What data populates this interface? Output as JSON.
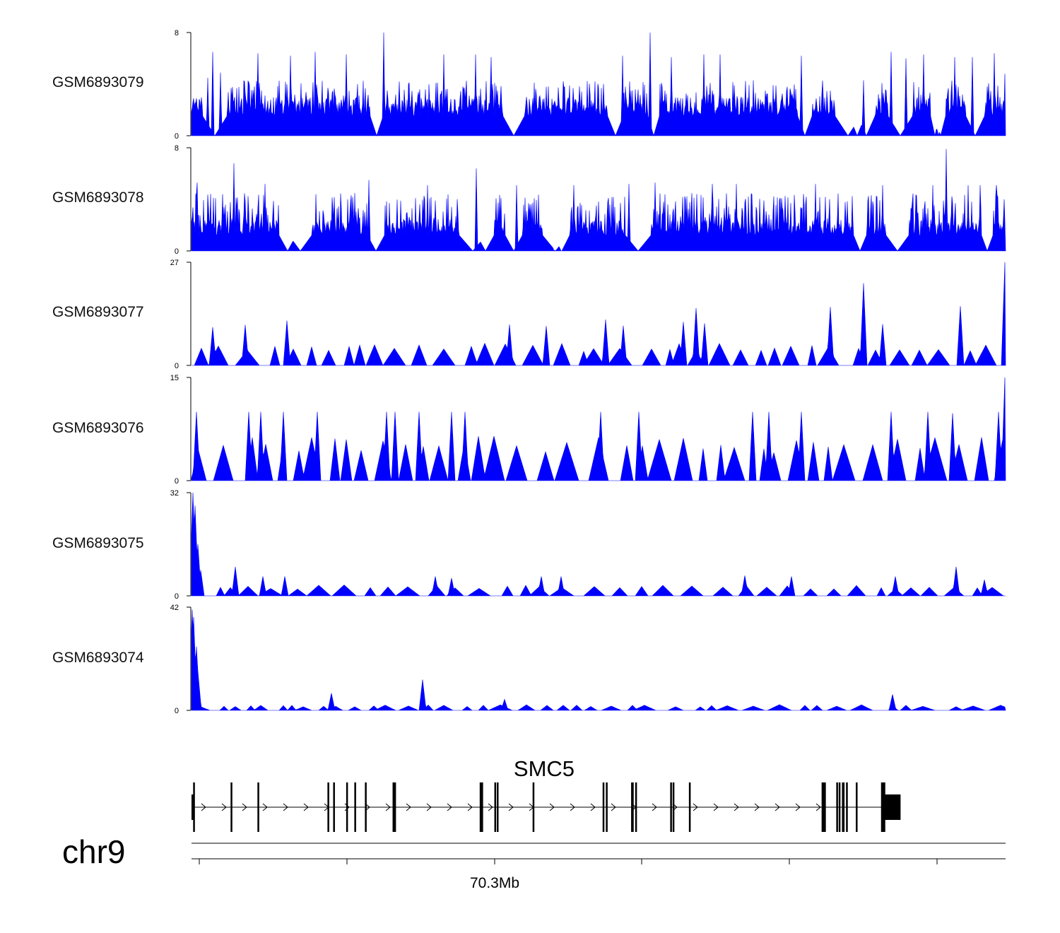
{
  "chromosome": "chr9",
  "gene": {
    "name": "SMC5",
    "strand": "+"
  },
  "axis": {
    "tick_label": "70.3Mb"
  },
  "colors": {
    "signal": "#0000ff",
    "gene": "#000000"
  },
  "chart_data": {
    "type": "area",
    "title": "",
    "region": "chr9 SMC5 locus",
    "tracks": [
      {
        "name": "GSM6893079",
        "ylim": [
          0,
          8
        ],
        "ymax_label": "8",
        "ymin_label": "0",
        "baseline": 1.5,
        "peaks": [
          [
            0.02,
            4.5
          ],
          [
            0.026,
            6.5
          ],
          [
            0.036,
            4.9
          ],
          [
            0.082,
            6.4
          ],
          [
            0.122,
            6.2
          ],
          [
            0.152,
            6.5
          ],
          [
            0.19,
            6.3
          ],
          [
            0.236,
            8.0
          ],
          [
            0.31,
            6.3
          ],
          [
            0.349,
            6.3
          ],
          [
            0.368,
            6.1
          ],
          [
            0.53,
            6.2
          ],
          [
            0.564,
            8.0
          ],
          [
            0.59,
            6.1
          ],
          [
            0.63,
            6.3
          ],
          [
            0.65,
            6.3
          ],
          [
            0.75,
            6.2
          ],
          [
            0.826,
            4.3
          ],
          [
            0.86,
            6.5
          ],
          [
            0.878,
            6.0
          ],
          [
            0.9,
            6.3
          ],
          [
            0.938,
            6.1
          ],
          [
            0.96,
            6.1
          ],
          [
            0.987,
            6.4
          ],
          [
            1.0,
            4.8
          ]
        ],
        "noise": 2.8
      },
      {
        "name": "GSM6893078",
        "ylim": [
          0,
          8
        ],
        "ymax_label": "8",
        "ymin_label": "0",
        "baseline": 1.2,
        "peaks": [
          [
            0.007,
            5.3
          ],
          [
            0.052,
            6.8
          ],
          [
            0.09,
            5.2
          ],
          [
            0.218,
            5.5
          ],
          [
            0.29,
            5.1
          ],
          [
            0.35,
            6.4
          ],
          [
            0.4,
            5.1
          ],
          [
            0.47,
            5.1
          ],
          [
            0.538,
            5.2
          ],
          [
            0.57,
            5.3
          ],
          [
            0.64,
            5.2
          ],
          [
            0.67,
            5.2
          ],
          [
            0.767,
            5.2
          ],
          [
            0.85,
            5.1
          ],
          [
            0.911,
            5.1
          ],
          [
            0.99,
            5.1
          ],
          [
            0.928,
            7.9
          ],
          [
            0.955,
            5.1
          ],
          [
            0.97,
            5.1
          ]
        ],
        "noise": 3.3
      },
      {
        "name": "GSM6893077",
        "ylim": [
          0,
          27
        ],
        "ymax_label": "27",
        "ymin_label": "0",
        "baseline": 0,
        "peaks": [
          [
            0.026,
            10.0
          ],
          [
            0.066,
            10.6
          ],
          [
            0.117,
            11.7
          ],
          [
            0.391,
            10.7
          ],
          [
            0.436,
            10.3
          ],
          [
            0.509,
            12.0
          ],
          [
            0.531,
            10.4
          ],
          [
            0.605,
            11.4
          ],
          [
            0.62,
            15.0
          ],
          [
            0.631,
            11.0
          ],
          [
            0.785,
            15.3
          ],
          [
            0.826,
            21.5
          ],
          [
            0.85,
            10.8
          ],
          [
            0.945,
            15.5
          ],
          [
            1.0,
            27.0
          ]
        ],
        "sawtooth": 4.5
      },
      {
        "name": "GSM6893076",
        "ylim": [
          0,
          15
        ],
        "ymax_label": "15",
        "ymin_label": "0",
        "baseline": 0,
        "peaks": [
          [
            0.006,
            10.0
          ],
          [
            0.07,
            10.0
          ],
          [
            0.085,
            10.0
          ],
          [
            0.113,
            10.0
          ],
          [
            0.155,
            10.0
          ],
          [
            0.24,
            10.0
          ],
          [
            0.25,
            10.0
          ],
          [
            0.28,
            10.0
          ],
          [
            0.32,
            10.0
          ],
          [
            0.336,
            10.0
          ],
          [
            0.503,
            10.0
          ],
          [
            0.55,
            10.0
          ],
          [
            0.69,
            10.0
          ],
          [
            0.71,
            10.0
          ],
          [
            0.75,
            10.0
          ],
          [
            0.86,
            10.0
          ],
          [
            0.905,
            10.0
          ],
          [
            0.936,
            9.8
          ],
          [
            0.992,
            10.0
          ],
          [
            1.0,
            15.0
          ]
        ],
        "sawtooth": 5.0
      },
      {
        "name": "GSM6893075",
        "ylim": [
          0,
          32
        ],
        "ymax_label": "32",
        "ymin_label": "0",
        "baseline": 0,
        "peaks": [
          [
            0.002,
            32.0
          ],
          [
            0.004,
            28.0
          ],
          [
            0.008,
            16.0
          ],
          [
            0.011,
            8.0
          ],
          [
            0.054,
            9.0
          ],
          [
            0.088,
            6.0
          ],
          [
            0.115,
            6.0
          ],
          [
            0.3,
            6.0
          ],
          [
            0.32,
            5.5
          ],
          [
            0.43,
            6.0
          ],
          [
            0.454,
            6.0
          ],
          [
            0.68,
            6.3
          ],
          [
            0.738,
            6.0
          ],
          [
            0.865,
            6.0
          ],
          [
            0.94,
            9.0
          ],
          [
            0.975,
            5.0
          ]
        ],
        "sawtooth": 2.6
      },
      {
        "name": "GSM6893074",
        "ylim": [
          0,
          42
        ],
        "ymax_label": "42",
        "ymin_label": "0",
        "baseline": 0,
        "peaks": [
          [
            0.001,
            41.0
          ],
          [
            0.003,
            38.0
          ],
          [
            0.006,
            26.0
          ],
          [
            0.008,
            16.0
          ],
          [
            0.172,
            7.0
          ],
          [
            0.284,
            12.5
          ],
          [
            0.385,
            4.5
          ],
          [
            0.862,
            6.5
          ]
        ],
        "sawtooth": 1.8
      }
    ],
    "gene_model": {
      "exons": [
        0.0,
        0.002,
        0.048,
        0.081,
        0.167,
        0.174,
        0.19,
        0.2,
        0.213,
        0.247,
        0.249,
        0.354,
        0.356,
        0.372,
        0.375,
        0.419,
        0.505,
        0.509,
        0.54,
        0.541,
        0.545,
        0.588,
        0.591,
        0.611,
        0.774,
        0.776,
        0.792,
        0.795,
        0.799,
        0.8,
        0.804,
        0.816,
        0.847
      ],
      "thick_exons": [
        0.774,
        0.847
      ],
      "utr_end_start": 0.847,
      "utr_end_end": 0.871
    },
    "xlabel": "",
    "ylabel": ""
  }
}
